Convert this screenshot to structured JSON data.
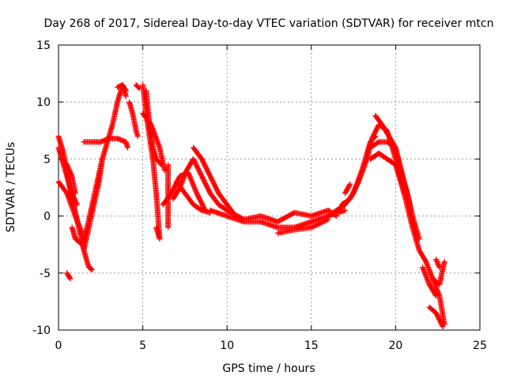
{
  "chart_data": {
    "type": "scatter",
    "title": "Day 268 of 2017, Sidereal Day-to-day VTEC variation (SDTVAR) for receiver mtcn",
    "xlabel": "GPS time / hours",
    "ylabel": "SDTVAR / TECUs",
    "xlim": [
      0,
      25
    ],
    "ylim": [
      -10,
      15
    ],
    "xticks": [
      0,
      5,
      10,
      15,
      20,
      25
    ],
    "yticks": [
      -10,
      -5,
      0,
      5,
      10,
      15
    ],
    "xtick_labels": [
      "0",
      "5",
      "10",
      "15",
      "20",
      "25"
    ],
    "ytick_labels": [
      "-10",
      "-5",
      "0",
      "5",
      "10",
      "15"
    ],
    "grid": true,
    "marker": "+",
    "series": [
      {
        "name": "SDTVAR",
        "color": "#ff0000",
        "tracks": [
          [
            [
              0,
              7
            ],
            [
              0.3,
              5.5
            ],
            [
              0.6,
              3
            ],
            [
              0.9,
              1
            ],
            [
              1.2,
              -1
            ],
            [
              1.5,
              -3
            ],
            [
              1.8,
              -4.5
            ],
            [
              2,
              -4.7
            ]
          ],
          [
            [
              0,
              6
            ],
            [
              0.4,
              4
            ],
            [
              0.8,
              2
            ],
            [
              1.1,
              1
            ]
          ],
          [
            [
              0,
              3
            ],
            [
              0.5,
              2
            ],
            [
              1,
              0
            ],
            [
              1.4,
              -1.5
            ]
          ],
          [
            [
              0.2,
              5
            ],
            [
              0.5,
              4.5
            ],
            [
              0.8,
              3.5
            ],
            [
              1,
              2
            ]
          ],
          [
            [
              0.5,
              -5
            ],
            [
              0.7,
              -5.5
            ]
          ],
          [
            [
              0.8,
              -1
            ],
            [
              1,
              -2
            ],
            [
              1.4,
              -2.5
            ],
            [
              1.7,
              -1
            ],
            [
              2,
              1
            ],
            [
              2.3,
              3
            ],
            [
              2.6,
              5
            ]
          ],
          [
            [
              1.5,
              -3
            ],
            [
              1.8,
              -1
            ],
            [
              2.1,
              1
            ],
            [
              2.4,
              3
            ],
            [
              2.6,
              5
            ],
            [
              2.9,
              6.5
            ],
            [
              3.2,
              8
            ],
            [
              3.5,
              10
            ],
            [
              3.8,
              11.5
            ],
            [
              4,
              11
            ]
          ],
          [
            [
              1.5,
              6.5
            ],
            [
              2,
              6.5
            ],
            [
              2.5,
              6.5
            ],
            [
              3,
              6.8
            ],
            [
              3.5,
              6.8
            ],
            [
              4,
              6.5
            ],
            [
              4.1,
              6
            ]
          ],
          [
            [
              3.5,
              11.3
            ],
            [
              3.8,
              11.5
            ],
            [
              4,
              10.5
            ]
          ],
          [
            [
              4.2,
              10
            ],
            [
              4.4,
              9
            ],
            [
              4.6,
              7.5
            ],
            [
              4.7,
              7
            ]
          ],
          [
            [
              4.6,
              11.5
            ],
            [
              4.8,
              11.2
            ]
          ],
          [
            [
              5,
              11.5
            ],
            [
              5.2,
              9
            ],
            [
              5.4,
              7
            ],
            [
              5.6,
              5
            ],
            [
              5.8,
              2
            ],
            [
              6,
              -2
            ]
          ],
          [
            [
              5.2,
              11
            ],
            [
              5.4,
              8
            ],
            [
              5.6,
              6
            ],
            [
              5.8,
              5
            ],
            [
              6.1,
              4.5
            ]
          ],
          [
            [
              5,
              9
            ],
            [
              5.5,
              8
            ],
            [
              6,
              6
            ],
            [
              6.3,
              4
            ]
          ],
          [
            [
              5.8,
              -1
            ],
            [
              6,
              -2
            ]
          ],
          [
            [
              6.5,
              -1
            ],
            [
              6.5,
              2
            ],
            [
              6.5,
              4.5
            ]
          ],
          [
            [
              6.2,
              1
            ],
            [
              6.7,
              2
            ],
            [
              7.2,
              3.5
            ],
            [
              7.7,
              3.8
            ],
            [
              8.2,
              2
            ],
            [
              8.7,
              0.5
            ]
          ],
          [
            [
              6.8,
              1.5
            ],
            [
              7.2,
              2.5
            ],
            [
              7.6,
              4
            ],
            [
              8,
              5
            ],
            [
              8.5,
              3.5
            ],
            [
              9,
              2
            ],
            [
              9.5,
              1
            ],
            [
              10,
              0.5
            ]
          ],
          [
            [
              7,
              3
            ],
            [
              7.5,
              2
            ],
            [
              8,
              1
            ],
            [
              8.5,
              0.5
            ],
            [
              9,
              0.3
            ]
          ],
          [
            [
              8,
              6
            ],
            [
              8.5,
              5
            ],
            [
              9,
              3.5
            ],
            [
              9.5,
              2
            ],
            [
              10,
              1
            ],
            [
              10.5,
              0
            ]
          ],
          [
            [
              9,
              0.5
            ],
            [
              10,
              0
            ],
            [
              11,
              -0.5
            ],
            [
              12,
              -0.5
            ],
            [
              13,
              -1
            ],
            [
              14,
              -1
            ],
            [
              15,
              -0.5
            ],
            [
              16,
              0
            ],
            [
              17,
              0.5
            ]
          ],
          [
            [
              10,
              0.5
            ],
            [
              11,
              -0.3
            ],
            [
              12,
              0
            ],
            [
              13,
              -0.5
            ],
            [
              14,
              0.3
            ],
            [
              15,
              0
            ],
            [
              16,
              0.5
            ],
            [
              16.5,
              0
            ]
          ],
          [
            [
              13,
              -1.5
            ],
            [
              14,
              -1.2
            ],
            [
              15,
              -1
            ],
            [
              16,
              -0.3
            ]
          ],
          [
            [
              16,
              0
            ],
            [
              16.5,
              0.5
            ],
            [
              17,
              1
            ],
            [
              17.5,
              2
            ],
            [
              18,
              4
            ],
            [
              18.5,
              6.5
            ],
            [
              18.8,
              7
            ]
          ],
          [
            [
              16.8,
              1
            ],
            [
              17.3,
              1.5
            ],
            [
              17.8,
              3
            ],
            [
              18.3,
              5
            ],
            [
              18.6,
              6.8
            ],
            [
              19,
              8
            ],
            [
              19.5,
              7.5
            ],
            [
              20,
              5
            ],
            [
              20.5,
              2
            ],
            [
              21,
              -1
            ]
          ],
          [
            [
              17,
              2
            ],
            [
              17.3,
              2.8
            ]
          ],
          [
            [
              18.8,
              8.8
            ],
            [
              19.2,
              8
            ],
            [
              19.6,
              7
            ],
            [
              20,
              6
            ],
            [
              20.3,
              4
            ],
            [
              20.7,
              2
            ],
            [
              21,
              0
            ],
            [
              21.4,
              -2
            ]
          ],
          [
            [
              18.5,
              5
            ],
            [
              19,
              5.5
            ],
            [
              19.5,
              5
            ],
            [
              20,
              4.5
            ],
            [
              20.5,
              2
            ]
          ],
          [
            [
              18.5,
              6
            ],
            [
              19,
              6.5
            ],
            [
              19.5,
              6.5
            ],
            [
              20,
              6
            ],
            [
              20.5,
              3
            ],
            [
              21,
              0
            ]
          ],
          [
            [
              21,
              -1
            ],
            [
              21.4,
              -3
            ],
            [
              21.8,
              -4
            ],
            [
              22.2,
              -5.5
            ],
            [
              22.6,
              -7
            ],
            [
              22.9,
              -9.5
            ]
          ],
          [
            [
              21.6,
              -4.5
            ],
            [
              22,
              -6
            ],
            [
              22.4,
              -7
            ]
          ],
          [
            [
              22,
              -8
            ],
            [
              22.4,
              -8.5
            ],
            [
              22.8,
              -9.7
            ]
          ],
          [
            [
              22.2,
              -5.5
            ],
            [
              22.6,
              -6
            ],
            [
              22.9,
              -4
            ]
          ],
          [
            [
              22.4,
              -3.8
            ],
            [
              22.6,
              -4.5
            ]
          ]
        ]
      }
    ]
  }
}
